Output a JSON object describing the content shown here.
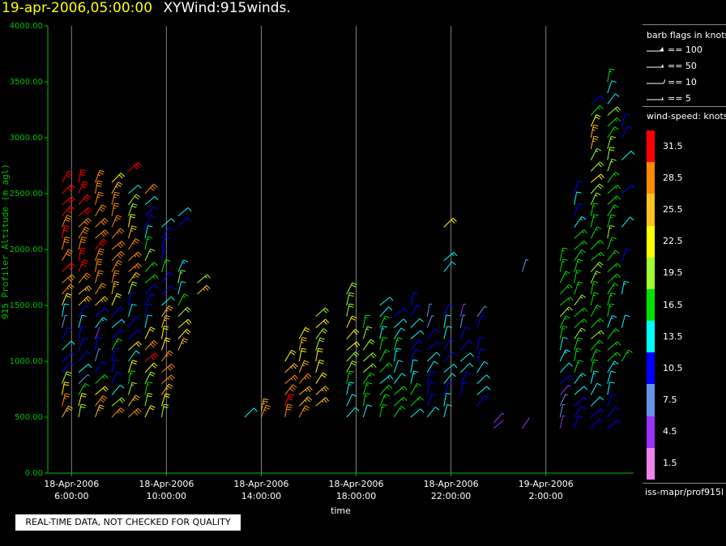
{
  "header": {
    "date_label": "19-apr-2006,05:00:00",
    "title": "XYWind:915winds."
  },
  "chart_data": {
    "type": "scatter",
    "title": "XYWind:915winds.",
    "xlabel": "time",
    "ylabel": "915 Profiler Altitude (m agl)",
    "ylim": [
      0,
      4000
    ],
    "y_ticks": [
      "0.00",
      "500.00",
      "1000.00",
      "1500.00",
      "2000.00",
      "2500.00",
      "3000.00",
      "3500.00",
      "4000.00"
    ],
    "x_ticks": [
      {
        "date": "18-Apr-2006",
        "time": "6:00:00"
      },
      {
        "date": "18-Apr-2006",
        "time": "10:00:00"
      },
      {
        "date": "18-Apr-2006",
        "time": "14:00:00"
      },
      {
        "date": "18-Apr-2006",
        "time": "18:00:00"
      },
      {
        "date": "18-Apr-2006",
        "time": "22:00:00"
      },
      {
        "date": "19-Apr-2006",
        "time": "2:00:00"
      }
    ],
    "x_tick_hours": [
      6,
      10,
      14,
      18,
      22,
      26
    ],
    "xlim_hours": [
      5.0,
      29.7
    ],
    "grid": "vertical at x ticks",
    "description": "Wind barbs colored by wind speed (knots) along profiler altitude over time",
    "series_columns": [
      {
        "hour": 5.6,
        "alt": [
          500,
          600,
          700,
          800,
          900,
          1000,
          1100,
          1200,
          1300,
          1400,
          1500,
          1600,
          1700,
          1800,
          1900,
          2000,
          2100,
          2200,
          2300,
          2400,
          2500,
          2600
        ],
        "speed": [
          26,
          28,
          24,
          20,
          12,
          10,
          14,
          11,
          9,
          13,
          24,
          28,
          30,
          31,
          30,
          30,
          31,
          30,
          31,
          32,
          31,
          31
        ]
      },
      {
        "hour": 6.3,
        "alt": [
          500,
          600,
          700,
          800,
          900,
          1000,
          1100,
          1200,
          1300,
          1400,
          1500,
          1600,
          1700,
          1800,
          1900,
          2000,
          2100,
          2200,
          2300,
          2400,
          2500,
          2600
        ],
        "speed": [
          20,
          23,
          16,
          8,
          13,
          11,
          10,
          12,
          14,
          10,
          26,
          27,
          30,
          31,
          31,
          30,
          30,
          30,
          31,
          31,
          31,
          31
        ]
      },
      {
        "hour": 7.0,
        "alt": [
          500,
          600,
          700,
          800,
          900,
          1000,
          1100,
          1200,
          1300,
          1400,
          1500,
          1600,
          1700,
          1800,
          1900,
          2000,
          2100,
          2200,
          2300,
          2400,
          2500,
          2600
        ],
        "speed": [
          26,
          30,
          22,
          18,
          12,
          9,
          10,
          4,
          15,
          12,
          25,
          28,
          29,
          30,
          30,
          31,
          30,
          30,
          30,
          29,
          30,
          29
        ]
      },
      {
        "hour": 7.7,
        "alt": [
          500,
          600,
          700,
          800,
          900,
          1000,
          1100,
          1200,
          1300,
          1400,
          1500,
          1600,
          1700,
          1800,
          1900,
          2000,
          2100,
          2200,
          2300,
          2400,
          2500,
          2600
        ],
        "speed": [
          29,
          20,
          14,
          10,
          12,
          10,
          17,
          11,
          13,
          10,
          22,
          26,
          28,
          29,
          30,
          30,
          29,
          29,
          29,
          28,
          27,
          24
        ]
      },
      {
        "hour": 8.4,
        "alt": [
          500,
          600,
          700,
          800,
          900,
          1000,
          1100,
          1200,
          1300,
          1400,
          1500,
          1600,
          1700,
          1800,
          1900,
          2000,
          2100,
          2200,
          2300,
          2400,
          2500,
          2700
        ],
        "speed": [
          30,
          25,
          19,
          16,
          22,
          14,
          24,
          11,
          10,
          13,
          12,
          20,
          27,
          28,
          29,
          28,
          26,
          24,
          21,
          20,
          14,
          31
        ]
      },
      {
        "hour": 9.1,
        "alt": [
          500,
          600,
          700,
          800,
          900,
          1000,
          1100,
          1200,
          1300,
          1400,
          1500,
          1600,
          1700,
          1800,
          1900,
          2000,
          2100,
          2200,
          2300,
          2400,
          2500
        ],
        "speed": [
          22,
          20,
          18,
          21,
          24,
          31,
          30,
          23,
          14,
          10,
          12,
          11,
          16,
          18,
          19,
          17,
          14,
          12,
          10,
          13,
          30
        ]
      },
      {
        "hour": 9.8,
        "alt": [
          500,
          600,
          700,
          800,
          900,
          1000,
          1100,
          1200,
          1300,
          1400,
          1500,
          1600,
          1700,
          1800,
          1900,
          2000,
          2100,
          2200
        ],
        "speed": [
          20,
          22,
          26,
          28,
          30,
          29,
          24,
          22,
          25,
          27,
          14,
          12,
          10,
          18,
          11,
          10,
          12,
          14
        ]
      },
      {
        "hour": 10.5,
        "alt": [
          1100,
          1200,
          1300,
          1400,
          1500,
          1600,
          1700,
          1800,
          2200,
          2300
        ],
        "speed": [
          25,
          24,
          22,
          21,
          17,
          14,
          19,
          15,
          10,
          13
        ]
      },
      {
        "hour": 11.3,
        "alt": [
          1600,
          1700
        ],
        "speed": [
          25,
          19
        ]
      },
      {
        "hour": 13.3,
        "alt": [
          500
        ],
        "speed": [
          14
        ]
      },
      {
        "hour": 14.0,
        "alt": [
          500,
          550
        ],
        "speed": [
          28,
          26
        ]
      },
      {
        "hour": 15.0,
        "alt": [
          500,
          600,
          700,
          800,
          900,
          1000
        ],
        "speed": [
          30,
          31,
          30,
          28,
          26,
          24
        ]
      },
      {
        "hour": 15.6,
        "alt": [
          500,
          600,
          700,
          800,
          900,
          1000,
          1100,
          1200
        ],
        "speed": [
          29,
          27,
          26,
          28,
          25,
          22,
          25,
          23
        ]
      },
      {
        "hour": 16.3,
        "alt": [
          600,
          700,
          800,
          900,
          1000,
          1100,
          1200,
          1300,
          1400
        ],
        "speed": [
          26,
          25,
          24,
          22,
          23,
          20,
          21,
          22,
          20
        ]
      },
      {
        "hour": 17.6,
        "alt": [
          500,
          600,
          700,
          800,
          900,
          1000,
          1100,
          1200,
          1300,
          1400,
          1500,
          1600
        ],
        "speed": [
          14,
          13,
          15,
          18,
          20,
          21,
          22,
          23,
          22,
          21,
          20,
          21
        ]
      },
      {
        "hour": 18.3,
        "alt": [
          500,
          600,
          700,
          800,
          900,
          1000,
          1100,
          1200,
          1300
        ],
        "speed": [
          14,
          16,
          18,
          17,
          19,
          20,
          21,
          19,
          16
        ]
      },
      {
        "hour": 19.0,
        "alt": [
          500,
          600,
          700,
          800,
          900,
          1000,
          1100,
          1200,
          1300,
          1400,
          1500
        ],
        "speed": [
          17,
          18,
          16,
          15,
          17,
          18,
          16,
          15,
          17,
          14,
          13
        ]
      },
      {
        "hour": 19.6,
        "alt": [
          500,
          600,
          700,
          800,
          900,
          1000,
          1100,
          1200,
          1300,
          1400
        ],
        "speed": [
          18,
          17,
          16,
          14,
          13,
          15,
          16,
          14,
          13,
          12
        ]
      },
      {
        "hour": 20.3,
        "alt": [
          500,
          600,
          700,
          800,
          900,
          1000,
          1100,
          1200,
          1300,
          1400,
          1500
        ],
        "speed": [
          14,
          16,
          17,
          15,
          13,
          12,
          11,
          14,
          13,
          12,
          11
        ]
      },
      {
        "hour": 21.0,
        "alt": [
          500,
          600,
          700,
          800,
          900,
          1000,
          1100,
          1200,
          1300,
          1400
        ],
        "speed": [
          13,
          12,
          11,
          12,
          13,
          14,
          11,
          10,
          9,
          8
        ]
      },
      {
        "hour": 21.7,
        "alt": [
          500,
          600,
          700,
          800,
          900,
          1000,
          1100,
          1200,
          1300,
          1400,
          1800,
          1900,
          2200
        ],
        "speed": [
          14,
          13,
          12,
          14,
          13,
          12,
          11,
          14,
          13,
          12,
          14,
          15,
          22
        ]
      },
      {
        "hour": 22.4,
        "alt": [
          700,
          800,
          900,
          1000,
          1100,
          1200,
          1300,
          1400
        ],
        "speed": [
          11,
          12,
          13,
          13,
          12,
          11,
          8,
          5
        ]
      },
      {
        "hour": 23.1,
        "alt": [
          600,
          700,
          800,
          900,
          1000,
          1100,
          1300,
          1400
        ],
        "speed": [
          11,
          13,
          14,
          13,
          12,
          11,
          10,
          9
        ]
      },
      {
        "hour": 23.8,
        "alt": [
          400,
          450
        ],
        "speed": [
          4,
          5
        ]
      },
      {
        "hour": 25.0,
        "alt": [
          400,
          1800
        ],
        "speed": [
          4,
          8
        ]
      },
      {
        "hour": 26.6,
        "alt": [
          400,
          500,
          600,
          700,
          800,
          900,
          1000,
          1100,
          1200,
          1300,
          1400,
          1500,
          1600,
          1700,
          1800,
          1900
        ],
        "speed": [
          6,
          9,
          8,
          5,
          11,
          13,
          15,
          14,
          17,
          18,
          19,
          16,
          17,
          18,
          17,
          16
        ]
      },
      {
        "hour": 27.2,
        "alt": [
          400,
          500,
          600,
          700,
          800,
          900,
          1000,
          1100,
          1200,
          1300,
          1400,
          1500,
          1600,
          1700,
          1800,
          1900,
          2000,
          2100,
          2200,
          2300,
          2400,
          2500
        ],
        "speed": [
          10,
          11,
          12,
          13,
          15,
          16,
          17,
          18,
          19,
          17,
          18,
          19,
          18,
          17,
          16,
          17,
          18,
          16,
          15,
          12,
          14,
          10
        ]
      },
      {
        "hour": 27.9,
        "alt": [
          400,
          500,
          600,
          700,
          800,
          900,
          1000,
          1100,
          1200,
          1300,
          1400,
          1500,
          1600,
          1700,
          1800,
          1900,
          2000,
          2100,
          2200,
          2300,
          2400,
          2500,
          2600,
          2700,
          2800,
          2900,
          3000,
          3100,
          3200,
          3300
        ],
        "speed": [
          11,
          12,
          13,
          14,
          15,
          16,
          17,
          18,
          19,
          18,
          17,
          16,
          18,
          19,
          20,
          18,
          17,
          16,
          17,
          18,
          19,
          20,
          22,
          21,
          19,
          26,
          25,
          24,
          18,
          12
        ]
      },
      {
        "hour": 28.6,
        "alt": [
          400,
          500,
          600,
          700,
          800,
          900,
          1000,
          1100,
          1200,
          1300,
          1400,
          1500,
          1600,
          1700,
          1800,
          1900,
          2000,
          2100,
          2200,
          2300,
          2400,
          2500,
          2600,
          2700,
          2800,
          2900,
          3000,
          3100,
          3200,
          3300,
          3400,
          3500
        ],
        "speed": [
          10,
          11,
          12,
          13,
          14,
          15,
          16,
          17,
          16,
          15,
          16,
          17,
          18,
          17,
          16,
          17,
          18,
          19,
          18,
          17,
          16,
          17,
          18,
          19,
          20,
          19,
          18,
          17,
          20,
          14,
          13,
          18
        ]
      },
      {
        "hour": 29.2,
        "alt": [
          1000,
          1300,
          1600,
          1900,
          2200,
          2500,
          2800,
          3000,
          3100
        ],
        "speed": [
          17,
          14,
          15,
          12,
          14,
          12,
          13,
          11,
          10
        ]
      }
    ]
  },
  "panel": {
    "barb_title": "barb flags in knots",
    "barb_flags": [
      "== 100",
      "== 50",
      "== 10",
      "== 5"
    ],
    "speed_title": "wind-speed: knots",
    "speed_labels": [
      "31.5",
      "28.5",
      "25.5",
      "22.5",
      "19.5",
      "16.5",
      "13.5",
      "10.5",
      "7.5",
      "4.5",
      "1.5"
    ],
    "speed_colors": [
      "#ff0000",
      "#ff8c00",
      "#ffc020",
      "#ffff00",
      "#a0ff30",
      "#00e000",
      "#00ffff",
      "#0000ff",
      "#6495ed",
      "#9b30ff",
      "#ee82ee"
    ],
    "source": "iss-mapr/prof915l"
  },
  "footer": {
    "text": "REAL-TIME DATA, NOT CHECKED FOR QUALITY"
  },
  "colors": {
    "axis": "#00c000",
    "grid": "#808080",
    "background": "#000000",
    "header_date": "#ffff00"
  }
}
